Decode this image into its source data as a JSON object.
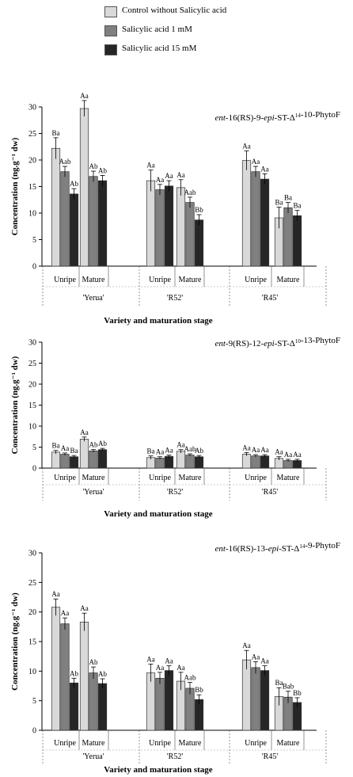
{
  "colors": {
    "control": "#d9d9d9",
    "sa1": "#808080",
    "sa15": "#262626"
  },
  "legend": [
    {
      "label": "Control without Salicylic acid",
      "color": "#d9d9d9"
    },
    {
      "label": "Salicylic acid 1 mM",
      "color": "#808080"
    },
    {
      "label": "Salicylic acid 15 mM",
      "color": "#262626"
    }
  ],
  "chart_data": [
    {
      "type": "bar",
      "title": "ent-16(RS)-9-epi-ST-Δ¹⁴-10-PhytoF",
      "ylabel": "Concentration (ng.g⁻¹ dw)",
      "xlabel": "Variety and maturation stage",
      "ylim": [
        0,
        30
      ],
      "yticks": [
        0,
        5,
        10,
        15,
        20,
        25,
        30
      ],
      "stages": [
        "Unripe",
        "Mature",
        "Unripe",
        "Mature",
        "Unripe",
        "Mature"
      ],
      "varieties": [
        "'Yerua'",
        "'R52'",
        "'R45'"
      ],
      "series": [
        {
          "name": "Control without Salicylic acid",
          "values": [
            22.2,
            29.7,
            16.1,
            14.8,
            19.9,
            9.1
          ],
          "errors": [
            2.0,
            1.5,
            2.0,
            1.5,
            1.8,
            2.0
          ],
          "labels": [
            "Ba",
            "Aa",
            "Aa",
            "Aa",
            "Aa",
            "Ba"
          ]
        },
        {
          "name": "Salicylic acid 1 mM",
          "values": [
            17.8,
            16.9,
            14.4,
            12.0,
            17.8,
            11.0
          ],
          "errors": [
            1.0,
            1.0,
            1.0,
            1.0,
            1.0,
            1.0
          ],
          "labels": [
            "Aab",
            "Ab",
            "Aa",
            "Aab",
            "Aa",
            "Ba"
          ]
        },
        {
          "name": "Salicylic acid 15 mM",
          "values": [
            13.6,
            16.1,
            15.1,
            8.7,
            16.4,
            9.5
          ],
          "errors": [
            1.0,
            1.0,
            1.0,
            1.0,
            1.0,
            1.0
          ],
          "labels": [
            "Ab",
            "Ab",
            "Aa",
            "Bb",
            "Aa",
            "Ba"
          ]
        }
      ]
    },
    {
      "type": "bar",
      "title": "ent-9(RS)-12-epi-ST-Δ¹⁰-13-PhytoF",
      "ylabel": "Concentration (ng.g⁻¹ dw)",
      "xlabel": "Variety and maturation stage",
      "ylim": [
        0,
        30
      ],
      "yticks": [
        0,
        5,
        10,
        15,
        20,
        25,
        30
      ],
      "stages": [
        "Unripe",
        "Mature",
        "Unripe",
        "Mature",
        "Unripe",
        "Mature"
      ],
      "varieties": [
        "'Yerua'",
        "'R52'",
        "'R45'"
      ],
      "series": [
        {
          "name": "Control without Salicylic acid",
          "values": [
            3.8,
            6.9,
            2.5,
            4.0,
            3.3,
            2.3
          ],
          "errors": [
            0.4,
            0.5,
            0.4,
            0.4,
            0.4,
            0.4
          ],
          "labels": [
            "Ba",
            "Aa",
            "Ba",
            "Aa",
            "Aa",
            "Aa"
          ]
        },
        {
          "name": "Salicylic acid 1 mM",
          "values": [
            3.3,
            4.1,
            2.4,
            3.1,
            2.9,
            1.8
          ],
          "errors": [
            0.3,
            0.3,
            0.3,
            0.3,
            0.3,
            0.3
          ],
          "labels": [
            "Aa",
            "Ab",
            "Aa",
            "Aab",
            "Aa",
            "Aa"
          ]
        },
        {
          "name": "Salicylic acid 15 mM",
          "values": [
            2.7,
            4.4,
            2.8,
            2.7,
            2.9,
            1.8
          ],
          "errors": [
            0.3,
            0.3,
            0.3,
            0.3,
            0.3,
            0.3
          ],
          "labels": [
            "Ba",
            "Ab",
            "Aa",
            "Ab",
            "Aa",
            "Aa"
          ]
        }
      ]
    },
    {
      "type": "bar",
      "title": "ent-16(RS)-13-epi-ST-Δ¹⁴-9-PhytoF",
      "ylabel": "Concentration (ng.g⁻¹ dw)",
      "xlabel": "Variety and maturation stage",
      "ylim": [
        0,
        30
      ],
      "yticks": [
        0,
        5,
        10,
        15,
        20,
        25,
        30
      ],
      "stages": [
        "Unripe",
        "Mature",
        "Unripe",
        "Mature",
        "Unripe",
        "Mature"
      ],
      "varieties": [
        "'Yerua'",
        "'R52'",
        "'R45'"
      ],
      "series": [
        {
          "name": "Control without Salicylic acid",
          "values": [
            20.8,
            18.3,
            9.7,
            8.3,
            11.9,
            5.7
          ],
          "errors": [
            1.4,
            1.5,
            1.5,
            1.5,
            1.6,
            1.5
          ],
          "labels": [
            "Aa",
            "Aa",
            "Aa",
            "Aa",
            "Aa",
            "Ba"
          ]
        },
        {
          "name": "Salicylic acid 1 mM",
          "values": [
            18.0,
            9.7,
            8.8,
            7.1,
            10.6,
            5.6
          ],
          "errors": [
            1.0,
            1.0,
            1.0,
            1.0,
            1.0,
            1.0
          ],
          "labels": [
            "Aa",
            "Ab",
            "Aa",
            "Aab",
            "Aa",
            "Bab"
          ]
        },
        {
          "name": "Salicylic acid 15 mM",
          "values": [
            8.0,
            7.9,
            10.1,
            5.2,
            10.1,
            4.7
          ],
          "errors": [
            0.8,
            0.8,
            0.8,
            0.8,
            0.8,
            0.8
          ],
          "labels": [
            "Ab",
            "Ab",
            "Aa",
            "Bb",
            "Aa",
            "Bb"
          ]
        }
      ]
    }
  ]
}
